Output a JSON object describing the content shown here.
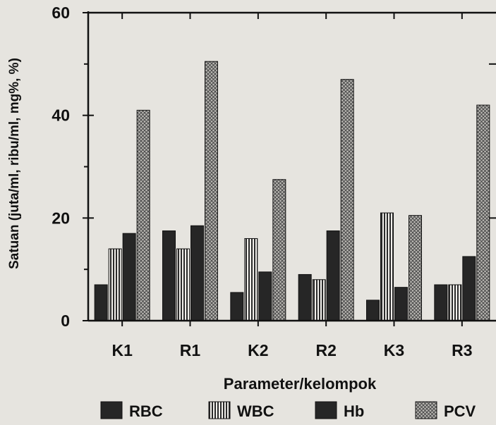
{
  "chart_data": {
    "type": "bar",
    "categories": [
      "K1",
      "R1",
      "K2",
      "R2",
      "K3",
      "R3"
    ],
    "series": [
      {
        "name": "RBC",
        "values": [
          7,
          17.5,
          5.5,
          9,
          4,
          7
        ],
        "pattern": "solid"
      },
      {
        "name": "WBC",
        "values": [
          14,
          14,
          16,
          8,
          21,
          7
        ],
        "pattern": "vertical-stripes"
      },
      {
        "name": "Hb",
        "values": [
          17,
          18.5,
          9.5,
          17.5,
          6.5,
          12.5
        ],
        "pattern": "solid"
      },
      {
        "name": "PCV",
        "values": [
          41,
          50.5,
          27.5,
          47,
          20.5,
          42
        ],
        "pattern": "crosshatch"
      }
    ],
    "ylabel": "Satuan (juta/ml, ribu/ml, mg%, %)",
    "xlabel": "Parameter/kelompok",
    "ylim": [
      0,
      60
    ],
    "yticks": [
      0,
      20,
      40,
      60
    ],
    "grid": false,
    "legend": "bottom"
  },
  "colors": {
    "background": "#e6e4df",
    "bar_dark": "#262626",
    "stripe": "#2a2a2a",
    "hatch": "#555555",
    "axis": "#111111"
  }
}
